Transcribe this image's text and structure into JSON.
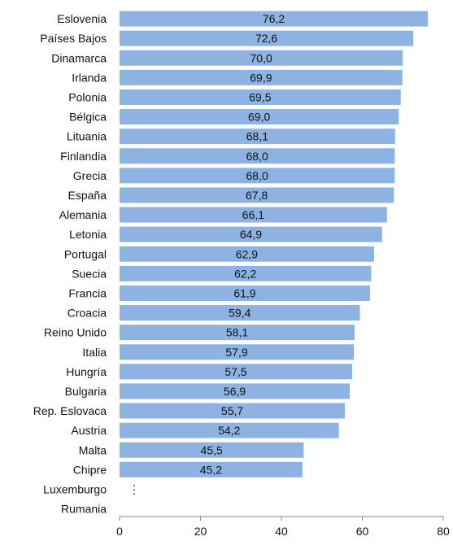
{
  "chart_data": {
    "type": "bar",
    "orientation": "horizontal",
    "title": "",
    "xlabel": "",
    "ylabel": "",
    "categories": [
      "Eslovenia",
      "Países Bajos",
      "Dinamarca",
      "Irlanda",
      "Polonia",
      "Bélgica",
      "Lituania",
      "Finlandia",
      "Grecia",
      "España",
      "Alemania",
      "Letonia",
      "Portugal",
      "Suecia",
      "Francia",
      "Croacia",
      "Reino Unido",
      "Italia",
      "Hungría",
      "Bulgaria",
      "Rep. Eslovaca",
      "Austria",
      "Malta",
      "Chipre",
      "Luxemburgo",
      "Rumania"
    ],
    "values": [
      76.2,
      72.6,
      70.0,
      69.9,
      69.5,
      69.0,
      68.1,
      68.0,
      68.0,
      67.8,
      66.1,
      64.9,
      62.9,
      62.2,
      61.9,
      59.4,
      58.1,
      57.9,
      57.5,
      56.9,
      55.7,
      54.2,
      45.5,
      45.2,
      null,
      null
    ],
    "value_labels": [
      "76,2",
      "72,6",
      "70,0",
      "69,9",
      "69,5",
      "69,0",
      "68,1",
      "68,0",
      "68,0",
      "67,8",
      "66,1",
      "64,9",
      "62,9",
      "62,2",
      "61,9",
      "59,4",
      "58,1",
      "57,9",
      "57,5",
      "56,9",
      "55,7",
      "54,2",
      "45,5",
      "45,2",
      "",
      ""
    ],
    "missing_marker": "⋮",
    "xlim": [
      0,
      80
    ],
    "xticks": [
      "0",
      "20",
      "40",
      "60",
      "80"
    ],
    "bar_color": "#8db3e2",
    "grid": false,
    "legend": "none"
  }
}
